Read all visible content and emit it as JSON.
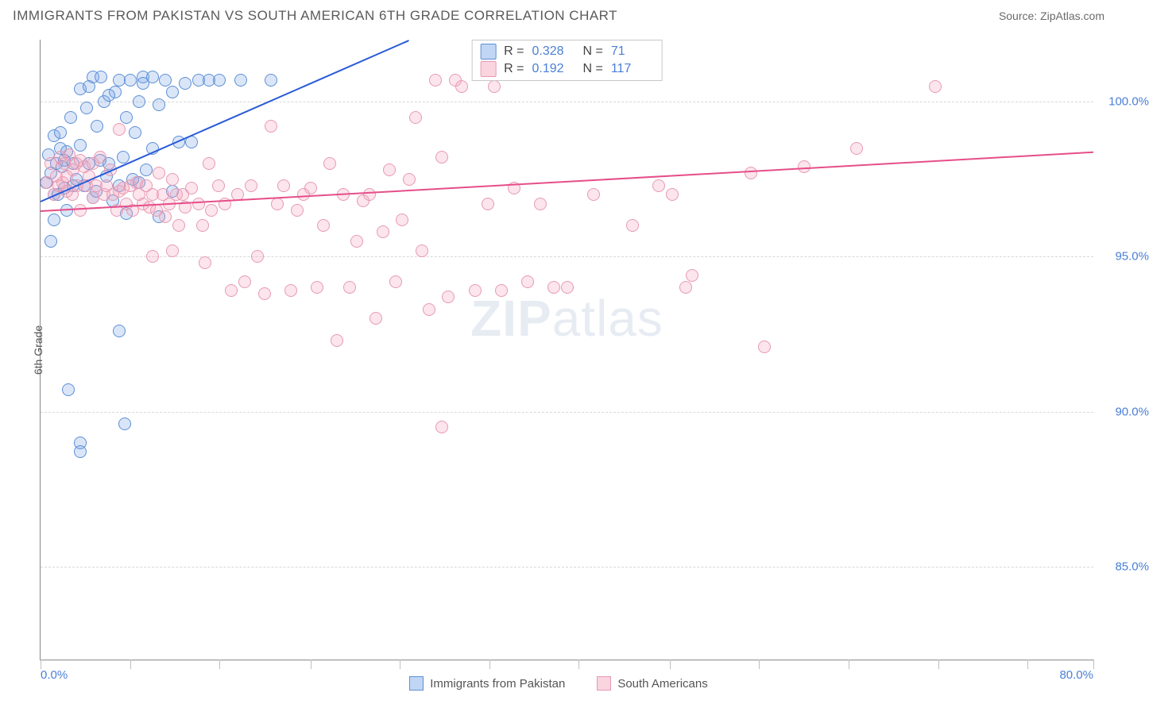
{
  "title": "IMMIGRANTS FROM PAKISTAN VS SOUTH AMERICAN 6TH GRADE CORRELATION CHART",
  "source": "Source: ZipAtlas.com",
  "watermark": {
    "left": "ZIP",
    "right": "atlas"
  },
  "chart": {
    "type": "scatter",
    "ylabel": "6th Grade",
    "xlim": [
      0,
      80
    ],
    "ylim": [
      82,
      102
    ],
    "x_ticks": [
      0,
      80
    ],
    "x_tick_labels": [
      "0.0%",
      "80.0%"
    ],
    "y_ticks": [
      85,
      90,
      95,
      100
    ],
    "y_tick_labels": [
      "85.0%",
      "90.0%",
      "95.0%",
      "100.0%"
    ],
    "vtick_positions": [
      0,
      6.8,
      13.6,
      20.5,
      27.3,
      34.1,
      40.9,
      47.8,
      54.6,
      61.4,
      68.2,
      75,
      80
    ],
    "grid_color": "#d8d8d8",
    "background_color": "#ffffff",
    "axis_color": "#888888",
    "tick_label_color": "#4a7fd6",
    "y_label_color": "#555555",
    "series": [
      {
        "name": "Immigrants from Pakistan",
        "color_fill": "rgba(117,163,230,0.27)",
        "color_stroke": "#5c8fd6",
        "marker_size": 16,
        "R": "0.328",
        "N": "71",
        "trend": {
          "x1": 0,
          "y1": 96.8,
          "x2": 28,
          "y2": 102,
          "color": "#2a5bd7",
          "width": 2
        },
        "points": [
          [
            0.4,
            97.4
          ],
          [
            0.6,
            98.3
          ],
          [
            0.8,
            97.7
          ],
          [
            1.0,
            98.9
          ],
          [
            1.0,
            97.0
          ],
          [
            1.2,
            98.0
          ],
          [
            1.3,
            97.0
          ],
          [
            1.5,
            98.5
          ],
          [
            1.5,
            99.0
          ],
          [
            1.8,
            97.2
          ],
          [
            1.8,
            98.1
          ],
          [
            2.0,
            98.4
          ],
          [
            2.0,
            96.5
          ],
          [
            2.3,
            99.5
          ],
          [
            2.5,
            97.3
          ],
          [
            2.5,
            98.0
          ],
          [
            2.7,
            97.5
          ],
          [
            3.0,
            100.4
          ],
          [
            3.0,
            98.6
          ],
          [
            3.3,
            97.3
          ],
          [
            3.5,
            99.8
          ],
          [
            3.7,
            100.5
          ],
          [
            3.7,
            98.0
          ],
          [
            4.0,
            96.9
          ],
          [
            4.2,
            97.1
          ],
          [
            4.3,
            99.2
          ],
          [
            4.5,
            98.1
          ],
          [
            4.8,
            100.0
          ],
          [
            5.0,
            97.6
          ],
          [
            5.2,
            98.0
          ],
          [
            5.5,
            96.8
          ],
          [
            5.7,
            100.3
          ],
          [
            6.0,
            97.3
          ],
          [
            6.0,
            100.7
          ],
          [
            6.3,
            98.2
          ],
          [
            6.5,
            96.4
          ],
          [
            6.8,
            100.7
          ],
          [
            7.0,
            97.5
          ],
          [
            7.5,
            100.0
          ],
          [
            7.5,
            97.4
          ],
          [
            7.8,
            100.8
          ],
          [
            8.0,
            97.8
          ],
          [
            8.5,
            100.8
          ],
          [
            8.5,
            98.5
          ],
          [
            9.0,
            99.9
          ],
          [
            9.0,
            96.3
          ],
          [
            9.5,
            100.7
          ],
          [
            10.0,
            97.1
          ],
          [
            10.0,
            100.3
          ],
          [
            10.5,
            98.7
          ],
          [
            11.0,
            100.6
          ],
          [
            11.5,
            98.7
          ],
          [
            12.0,
            100.7
          ],
          [
            12.8,
            100.7
          ],
          [
            13.6,
            100.7
          ],
          [
            15.2,
            100.7
          ],
          [
            17.5,
            100.7
          ],
          [
            3.0,
            89.0
          ],
          [
            3.0,
            88.7
          ],
          [
            2.1,
            90.7
          ],
          [
            6.0,
            92.6
          ],
          [
            6.4,
            89.6
          ],
          [
            0.8,
            95.5
          ],
          [
            4.0,
            100.8
          ],
          [
            4.6,
            100.8
          ],
          [
            5.2,
            100.2
          ],
          [
            6.5,
            99.5
          ],
          [
            7.2,
            99.0
          ],
          [
            7.8,
            100.6
          ],
          [
            1.0,
            96.2
          ],
          [
            1.6,
            97.9
          ]
        ]
      },
      {
        "name": "South Americans",
        "color_fill": "rgba(244,160,185,0.27)",
        "color_stroke": "#e79ab3",
        "marker_size": 16,
        "R": "0.192",
        "N": "117",
        "trend": {
          "x1": 0,
          "y1": 96.5,
          "x2": 80,
          "y2": 98.4,
          "color": "#e64e8a",
          "width": 2
        },
        "points": [
          [
            0.5,
            97.4
          ],
          [
            0.8,
            98.0
          ],
          [
            1.0,
            97.0
          ],
          [
            1.2,
            97.6
          ],
          [
            1.4,
            97.3
          ],
          [
            1.5,
            98.2
          ],
          [
            1.7,
            97.4
          ],
          [
            1.8,
            98.0
          ],
          [
            2.0,
            97.6
          ],
          [
            2.0,
            97.1
          ],
          [
            2.2,
            98.3
          ],
          [
            2.4,
            97.0
          ],
          [
            2.5,
            97.8
          ],
          [
            2.7,
            98.0
          ],
          [
            2.8,
            97.3
          ],
          [
            3.0,
            98.1
          ],
          [
            3.0,
            96.5
          ],
          [
            3.3,
            97.9
          ],
          [
            3.5,
            97.3
          ],
          [
            3.7,
            97.6
          ],
          [
            4.0,
            98.0
          ],
          [
            4.0,
            96.9
          ],
          [
            4.2,
            97.3
          ],
          [
            4.5,
            98.2
          ],
          [
            4.8,
            97.0
          ],
          [
            5.0,
            97.3
          ],
          [
            5.3,
            97.8
          ],
          [
            5.5,
            97.0
          ],
          [
            5.8,
            96.5
          ],
          [
            6.0,
            97.1
          ],
          [
            6.0,
            99.1
          ],
          [
            6.3,
            97.2
          ],
          [
            6.5,
            96.7
          ],
          [
            6.8,
            97.3
          ],
          [
            7.0,
            96.5
          ],
          [
            7.3,
            97.4
          ],
          [
            7.5,
            97.0
          ],
          [
            7.8,
            96.7
          ],
          [
            8.0,
            97.3
          ],
          [
            8.3,
            96.6
          ],
          [
            8.5,
            97.0
          ],
          [
            8.8,
            96.5
          ],
          [
            9.0,
            97.7
          ],
          [
            9.3,
            97.0
          ],
          [
            9.5,
            96.3
          ],
          [
            9.8,
            96.7
          ],
          [
            10.0,
            97.5
          ],
          [
            10.3,
            97.0
          ],
          [
            10.5,
            96.0
          ],
          [
            10.8,
            97.0
          ],
          [
            11.0,
            96.6
          ],
          [
            11.5,
            97.2
          ],
          [
            12.0,
            96.7
          ],
          [
            12.3,
            96.0
          ],
          [
            12.8,
            98.0
          ],
          [
            13.0,
            96.5
          ],
          [
            13.5,
            97.3
          ],
          [
            14.0,
            96.7
          ],
          [
            14.5,
            93.9
          ],
          [
            15.0,
            97.0
          ],
          [
            15.5,
            94.2
          ],
          [
            16.0,
            97.3
          ],
          [
            16.5,
            95.0
          ],
          [
            17.0,
            93.8
          ],
          [
            17.5,
            99.2
          ],
          [
            18.0,
            96.7
          ],
          [
            18.5,
            97.3
          ],
          [
            19.0,
            93.9
          ],
          [
            19.5,
            96.5
          ],
          [
            20.0,
            97.0
          ],
          [
            20.5,
            97.2
          ],
          [
            21.0,
            94.0
          ],
          [
            21.5,
            96.0
          ],
          [
            22.0,
            98.0
          ],
          [
            22.5,
            92.3
          ],
          [
            23.0,
            97.0
          ],
          [
            23.5,
            94.0
          ],
          [
            24.0,
            95.5
          ],
          [
            24.5,
            96.8
          ],
          [
            25.0,
            97.0
          ],
          [
            25.5,
            93.0
          ],
          [
            26.0,
            95.8
          ],
          [
            26.5,
            97.8
          ],
          [
            27.0,
            94.2
          ],
          [
            27.5,
            96.2
          ],
          [
            28.0,
            97.5
          ],
          [
            28.5,
            99.5
          ],
          [
            29.0,
            95.2
          ],
          [
            29.5,
            93.3
          ],
          [
            30.0,
            100.7
          ],
          [
            30.5,
            98.2
          ],
          [
            31.0,
            93.7
          ],
          [
            31.5,
            100.7
          ],
          [
            32.0,
            100.5
          ],
          [
            33.0,
            93.9
          ],
          [
            34.0,
            96.7
          ],
          [
            34.5,
            100.5
          ],
          [
            35.0,
            93.9
          ],
          [
            36.0,
            97.2
          ],
          [
            37.0,
            94.2
          ],
          [
            38.0,
            96.7
          ],
          [
            39.0,
            94.0
          ],
          [
            40.0,
            94.0
          ],
          [
            42.0,
            97.0
          ],
          [
            45.0,
            96.0
          ],
          [
            47.0,
            97.3
          ],
          [
            48.0,
            97.0
          ],
          [
            49.0,
            94.0
          ],
          [
            49.5,
            94.4
          ],
          [
            54.0,
            97.7
          ],
          [
            55.0,
            92.1
          ],
          [
            58.0,
            97.9
          ],
          [
            62.0,
            98.5
          ],
          [
            68.0,
            100.5
          ],
          [
            30.5,
            89.5
          ],
          [
            12.5,
            94.8
          ],
          [
            10.0,
            95.2
          ],
          [
            8.5,
            95.0
          ]
        ]
      }
    ],
    "legend": {
      "r_label": "R =",
      "n_label": "N ="
    },
    "bottom_legend": [
      "Immigrants from Pakistan",
      "South Americans"
    ]
  }
}
